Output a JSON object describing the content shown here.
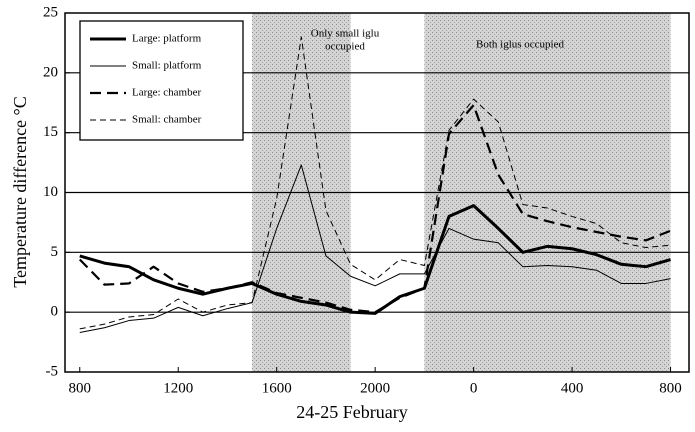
{
  "chart_data": {
    "type": "line",
    "x_label": "24-25 February",
    "y_label": "Temperature difference °C",
    "x": [
      800,
      900,
      1000,
      1100,
      1200,
      1300,
      1400,
      1500,
      1600,
      1700,
      1800,
      1900,
      2000,
      2100,
      2200,
      2300,
      2400,
      2500,
      2600,
      2700,
      2800,
      2900,
      3000,
      3100,
      3200
    ],
    "series": [
      {
        "name": "Large: platform",
        "color": "#000000",
        "line_width": 3,
        "dash": "none",
        "values": [
          4.7,
          4.1,
          3.8,
          2.7,
          2.0,
          1.5,
          2.0,
          2.4,
          1.5,
          0.9,
          0.6,
          0.0,
          -0.1,
          1.3,
          2.0,
          8.0,
          8.9,
          7.0,
          5.0,
          5.5,
          5.3,
          4.8,
          4.0,
          3.8,
          4.4
        ]
      },
      {
        "name": "Small: platform",
        "color": "#000000",
        "line_width": 1,
        "dash": "none",
        "values": [
          -1.7,
          -1.3,
          -0.7,
          -0.5,
          0.4,
          -0.3,
          0.3,
          0.8,
          7.0,
          12.3,
          4.7,
          3.0,
          2.2,
          3.2,
          3.2,
          7.0,
          6.1,
          5.8,
          3.8,
          3.9,
          3.8,
          3.5,
          2.4,
          2.4,
          2.8
        ]
      },
      {
        "name": "Large: chamber",
        "color": "#000000",
        "line_width": 2.2,
        "dash": "11,6",
        "values": [
          4.4,
          2.3,
          2.4,
          3.8,
          2.4,
          1.7,
          2.0,
          2.5,
          1.6,
          1.2,
          0.8,
          0.2,
          0.0,
          1.2,
          2.0,
          14.9,
          17.3,
          11.5,
          8.2,
          7.6,
          7.1,
          6.7,
          6.3,
          6.0,
          6.8
        ]
      },
      {
        "name": "Small: chamber",
        "color": "#000000",
        "line_width": 1,
        "dash": "6,4",
        "values": [
          -1.4,
          -1.0,
          -0.4,
          -0.2,
          1.1,
          0.0,
          0.6,
          0.8,
          9.5,
          23.0,
          8.5,
          4.0,
          2.7,
          4.4,
          3.9,
          15.2,
          17.8,
          15.9,
          9.0,
          8.7,
          8.0,
          7.4,
          5.8,
          5.4,
          5.6
        ]
      }
    ],
    "xlim": [
      740,
      3275
    ],
    "ylim": [
      -5,
      25
    ],
    "xticks": [
      800,
      1200,
      1600,
      2000,
      {
        "value": 2400,
        "label": "0"
      },
      {
        "value": 2800,
        "label": "400"
      },
      {
        "value": 3200,
        "label": "800"
      }
    ],
    "yticks": [
      -5,
      0,
      5,
      10,
      15,
      20,
      25
    ],
    "grid": true,
    "legend": "upper left",
    "shaded": [
      [
        1500,
        1900
      ],
      [
        2200,
        3200
      ]
    ],
    "annotations": [
      {
        "text": [
          "Only small iglu",
          "occupied"
        ]
      },
      {
        "text": [
          "Both iglus occupied"
        ]
      }
    ]
  }
}
